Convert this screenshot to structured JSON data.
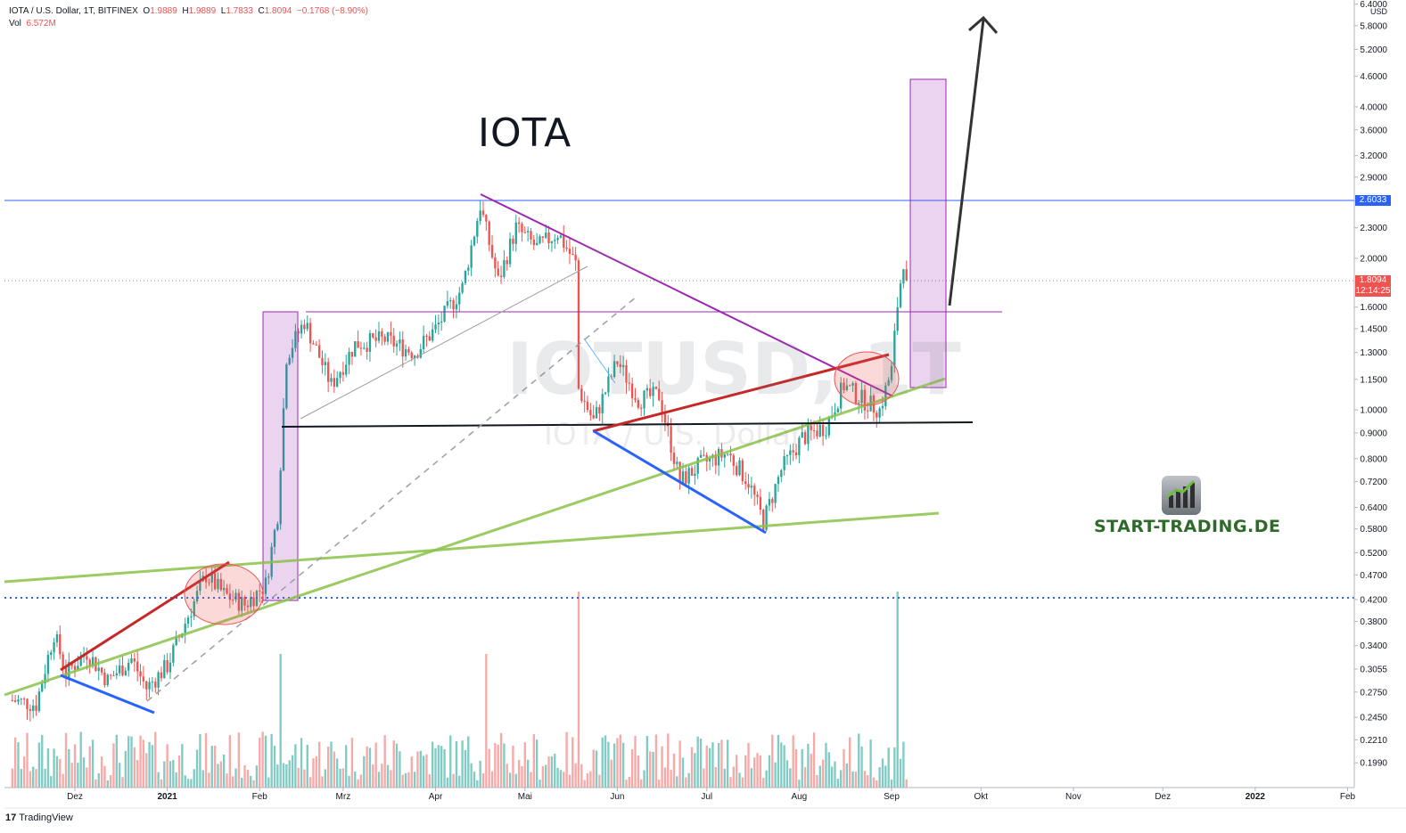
{
  "legend": {
    "symbol": "IOTA / U.S. Dollar, 1T, BITFINEX",
    "o_label": "O",
    "o": "1.9889",
    "h_label": "H",
    "h": "1.9889",
    "l_label": "L",
    "l": "1.7833",
    "c_label": "C",
    "c": "1.8094",
    "change": "−0.1768 (−8.90%)",
    "vol_label": "Vol",
    "vol": "6.572M"
  },
  "annotation_title": "IOTA",
  "watermark": "IOTUSD, 1T",
  "watermark_sub": "IOTA / U.S. Dollar",
  "brand": "START-TRADING.DE",
  "tradingview": "TradingView",
  "colors": {
    "up": "#26a69a",
    "down": "#ef5350",
    "vol_up": "#80cbc4",
    "vol_down": "#f7a9a7",
    "blue_line": "#2962ff",
    "violet": "#9c27b0",
    "green_trend": "#8bc34a",
    "red_trend": "#c62828",
    "black_line": "#131722",
    "blue_dotted": "#2962ff"
  },
  "chart_data": {
    "type": "candlestick",
    "y_scale": "log",
    "y_unit": "USD",
    "y_ticks": [
      "6.4000",
      "5.8000",
      "5.2000",
      "4.6000",
      "4.0000",
      "3.6000",
      "3.2000",
      "2.9000",
      "2.6000",
      "2.3000",
      "2.0000",
      "1.6000",
      "1.4500",
      "1.3000",
      "1.1500",
      "1.0000",
      "0.9000",
      "0.8000",
      "0.7200",
      "0.6400",
      "0.5800",
      "0.5200",
      "0.4700",
      "0.4200",
      "0.3800",
      "0.3400",
      "0.3055",
      "0.2750",
      "0.2450",
      "0.2210",
      "0.1990"
    ],
    "x_labels": [
      "Dez",
      "2021",
      "Feb",
      "Mrz",
      "Apr",
      "Mai",
      "Jun",
      "Jul",
      "Aug",
      "Sep",
      "Okt",
      "Nov",
      "Dez",
      "2022",
      "Feb"
    ],
    "bold_x_labels": [
      "2021",
      "2022"
    ],
    "price_labels": {
      "horizontal_line": "2.6033",
      "last_price": "1.8094",
      "countdown": "12:14:25"
    },
    "price_path": [
      {
        "date": "2020-11-10",
        "close": 0.265
      },
      {
        "date": "2020-11-18",
        "close": 0.26
      },
      {
        "date": "2020-11-24",
        "close": 0.36
      },
      {
        "date": "2020-11-28",
        "close": 0.3
      },
      {
        "date": "2020-12-05",
        "close": 0.33
      },
      {
        "date": "2020-12-12",
        "close": 0.29
      },
      {
        "date": "2020-12-20",
        "close": 0.32
      },
      {
        "date": "2020-12-25",
        "close": 0.28
      },
      {
        "date": "2021-01-01",
        "close": 0.31
      },
      {
        "date": "2021-01-08",
        "close": 0.39
      },
      {
        "date": "2021-01-14",
        "close": 0.47
      },
      {
        "date": "2021-01-20",
        "close": 0.43
      },
      {
        "date": "2021-01-27",
        "close": 0.41
      },
      {
        "date": "2021-02-03",
        "close": 0.45
      },
      {
        "date": "2021-02-07",
        "close": 0.62
      },
      {
        "date": "2021-02-10",
        "close": 1.28
      },
      {
        "date": "2021-02-16",
        "close": 1.5
      },
      {
        "date": "2021-02-25",
        "close": 1.12
      },
      {
        "date": "2021-03-05",
        "close": 1.35
      },
      {
        "date": "2021-03-15",
        "close": 1.38
      },
      {
        "date": "2021-03-25",
        "close": 1.3
      },
      {
        "date": "2021-04-01",
        "close": 1.45
      },
      {
        "date": "2021-04-10",
        "close": 1.75
      },
      {
        "date": "2021-04-16",
        "close": 2.55
      },
      {
        "date": "2021-04-22",
        "close": 1.8
      },
      {
        "date": "2021-04-28",
        "close": 2.3
      },
      {
        "date": "2021-05-05",
        "close": 2.1
      },
      {
        "date": "2021-05-12",
        "close": 2.25
      },
      {
        "date": "2021-05-18",
        "close": 1.95
      },
      {
        "date": "2021-05-19",
        "close": 1.1
      },
      {
        "date": "2021-05-24",
        "close": 0.95
      },
      {
        "date": "2021-06-01",
        "close": 1.25
      },
      {
        "date": "2021-06-08",
        "close": 1.05
      },
      {
        "date": "2021-06-15",
        "close": 1.07
      },
      {
        "date": "2021-06-22",
        "close": 0.72
      },
      {
        "date": "2021-06-29",
        "close": 0.78
      },
      {
        "date": "2021-07-08",
        "close": 0.82
      },
      {
        "date": "2021-07-15",
        "close": 0.72
      },
      {
        "date": "2021-07-20",
        "close": 0.6
      },
      {
        "date": "2021-07-26",
        "close": 0.76
      },
      {
        "date": "2021-08-02",
        "close": 0.88
      },
      {
        "date": "2021-08-10",
        "close": 0.93
      },
      {
        "date": "2021-08-16",
        "close": 1.12
      },
      {
        "date": "2021-08-22",
        "close": 1.05
      },
      {
        "date": "2021-08-28",
        "close": 1.0
      },
      {
        "date": "2021-09-01",
        "close": 1.2
      },
      {
        "date": "2021-09-03",
        "close": 1.62
      },
      {
        "date": "2021-09-05",
        "close": 1.99
      },
      {
        "date": "2021-09-06",
        "close": 1.8094
      }
    ],
    "volume_spikes": [
      {
        "date": "2021-02-08",
        "value": "high"
      },
      {
        "date": "2021-05-19",
        "value": "very-high"
      },
      {
        "date": "2021-04-18",
        "value": "high"
      },
      {
        "date": "2021-09-03",
        "value": "very-high"
      }
    ]
  }
}
